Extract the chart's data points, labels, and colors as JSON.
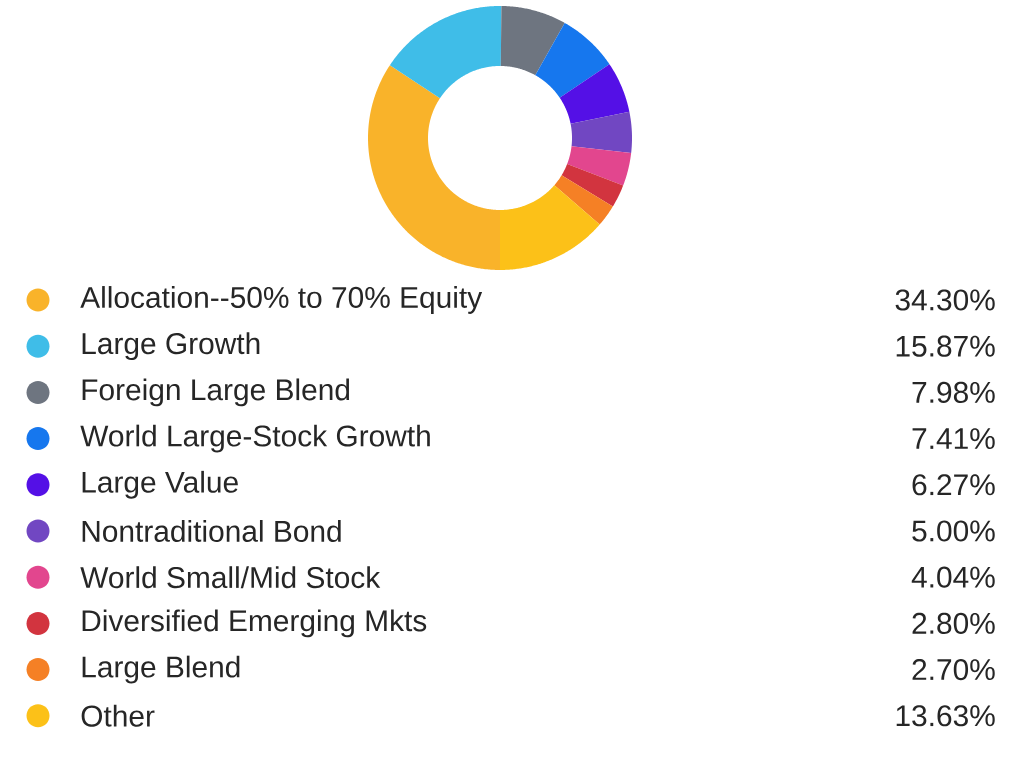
{
  "chart_data": {
    "type": "donut",
    "categories": [
      "Allocation--50% to 70% Equity",
      "Large Growth",
      "Foreign Large Blend",
      "World Large-Stock Growth",
      "Large Value",
      "Nontraditional Bond",
      "World Small/Mid Stock",
      "Diversified Emerging Mkts",
      "Large Blend",
      "Other"
    ],
    "values": [
      34.3,
      15.87,
      7.98,
      7.41,
      6.27,
      5.0,
      4.04,
      2.8,
      2.7,
      13.63
    ],
    "value_labels": [
      "34.30%",
      "15.87%",
      "7.98%",
      "7.41%",
      "6.27%",
      "5.00%",
      "4.04%",
      "2.80%",
      "2.70%",
      "13.63%"
    ],
    "colors": [
      "#f9b32a",
      "#3fbde8",
      "#6e7580",
      "#1677ee",
      "#5410e6",
      "#7147c2",
      "#e2468e",
      "#d2343f",
      "#f58025",
      "#fcc118"
    ],
    "legend": "bottom"
  }
}
